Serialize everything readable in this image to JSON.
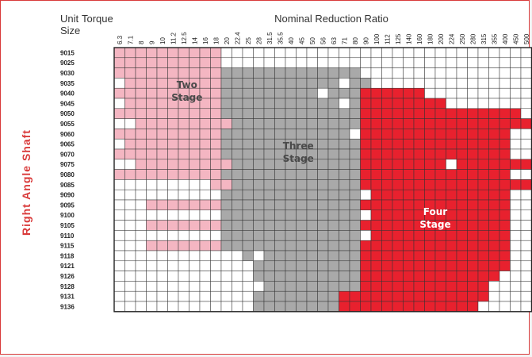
{
  "header": {
    "unit_label": "Unit",
    "size_label": "Size",
    "torque_label": "Torque",
    "ratio_title": "Nominal Reduction Ratio"
  },
  "side_label": "Right  Angle  Shaft",
  "colors": {
    "two_stage": "#f4b6c2",
    "three_stage": "#a9a9a9",
    "four_stage": "#e8212e",
    "empty": "#ffffff",
    "grid_line": "#333333",
    "border": "#d93a3a"
  },
  "ratios": [
    "6.3",
    "7.1",
    "8",
    "9",
    "10",
    "11.2",
    "12.5",
    "14",
    "16",
    "18",
    "20",
    "22.4",
    "25",
    "28",
    "31.5",
    "35.5",
    "40",
    "45",
    "50",
    "56",
    "63",
    "71",
    "80",
    "90",
    "100",
    "112",
    "125",
    "140",
    "160",
    "180",
    "200",
    "224",
    "250",
    "280",
    "315",
    "355",
    "400",
    "450",
    "500"
  ],
  "units": [
    "9015",
    "9025",
    "9030",
    "9035",
    "9040",
    "9045",
    "9050",
    "9055",
    "9060",
    "9065",
    "9070",
    "9075",
    "9080",
    "9085",
    "9090",
    "9095",
    "9100",
    "9105",
    "9110",
    "9115",
    "9118",
    "9121",
    "9126",
    "9128",
    "9131",
    "9136"
  ],
  "zones": [
    {
      "key": "two",
      "line1": "Two",
      "line2": "Stage",
      "color": "#4a4a4a",
      "col": 6.8,
      "row": 4.0
    },
    {
      "key": "three",
      "line1": "Three",
      "line2": "Stage",
      "color": "#4a4a4a",
      "col": 17.2,
      "row": 10.0
    },
    {
      "key": "four",
      "line1": "Four",
      "line2": "Stage",
      "color": "#ffffff",
      "col": 30.0,
      "row": 16.5
    }
  ],
  "grid": {
    "legend": "T = two stage, G = three stage, F = four stage, . = not available",
    "rows": [
      "TTTTTTTTTT.............................",
      "TTTTTTTTTT.............................",
      "TTTTTTTTTTGGGGGGGGGGGGG................",
      ".TTTTTTTTTGGGGGGGGGGG.GG...............",
      "TTTTTTTTTTGGGGGGGGG.GGGFFFFFF..........",
      ".TTTTTTTTTGGGGGGGGGGG.GFFFFFFFF........",
      "TTTTTTTTTTGGGGGGGGGGGGGFFFFFFFFFFFFFFF.",
      "..TTTTTTTTTGGGGGGGGGGGGFFFFFFFFFFFFFFFF",
      "TTTTTTTTTTGGGGGGGGGGGG.FFFFFFFFFFFFFF..",
      ".TTTTTTTTTGGGGGGGGGGGGGFFFFFFFFFFFFFF..",
      "TTTTTTTTTTGGGGGGGGGGGGGFFFFFFFFFFFFFF..",
      "..TTTTTTTTTGGGGGGGGGGGGFFFFFFFF.FFFFFFF",
      "TTTTTTTTTTGGGGGGGGGGGGGFFFFFFFFFFFFFF..",
      ".........TTGGGGGGGGGGGGFFFFFFFFFFFFFFFF",
      "..........GGGGGGGGGGGGG.FFFFFFFFFFFFF..",
      "...TTTTTTTGGGGGGGGGGGGGFFFFFFFFFFFFFF..",
      "..........GGGGGGGGGGGGG.FFFFFFFFFFFFF..",
      "...TTTTTTTGGGGGGGGGGGGGFFFFFFFFFFFFFF..",
      "..........GGGGGGGGGGGGG.FFFFFFFFFFFFF..",
      "...TTTTTTTGGGGGGGGGGGGGFFFFFFFFFFFFFF..",
      "............G.GGGGGGGGGFFFFFFFFFFFFFF..",
      ".............GGGGGGGGGGFFFFFFFFFFFFFF..",
      ".............GGGGGGGGGGFFFFFFFFFFFFF...",
      "..............GGGGGGGGGFFFFFFFFFFFF....",
      ".............GGGGGGGGFFFFFFFFFFFFFF....",
      ".............GGGGGGGGFFFFFFFFFFFFF....."
    ]
  }
}
